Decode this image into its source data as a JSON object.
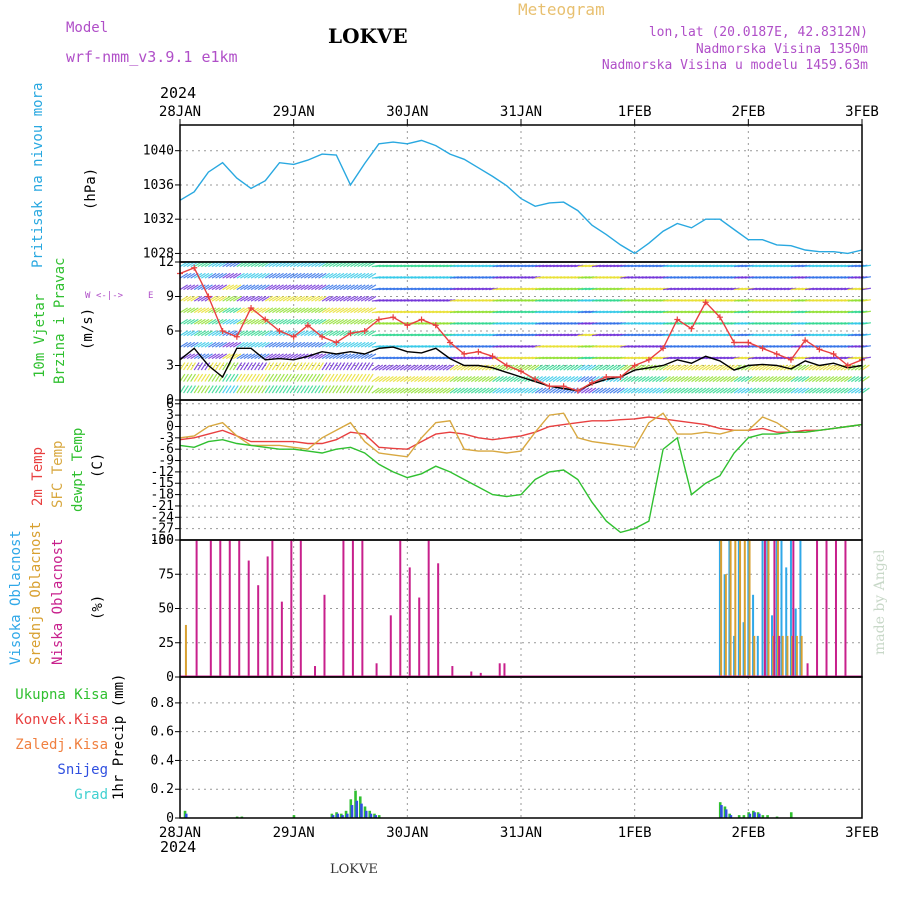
{
  "header": {
    "model_label": "Model",
    "model_name": "wrf-nmm_v3.9.1  e1km",
    "title": "LOKVE",
    "meteogram": "Meteogram",
    "lonlat": "lon,lat (20.0187E, 42.8312N)",
    "altitude": "Nadmorska Visina 1350m",
    "model_altitude": "Nadmorska Visina u modelu 1459.63m"
  },
  "footer": {
    "title": "LOKVE",
    "watermark": "made by Angel"
  },
  "time_axis": {
    "year": "2024",
    "labels": [
      "28JAN",
      "29JAN",
      "30JAN",
      "31JAN",
      "1FEB",
      "2FEB",
      "3FEB"
    ]
  },
  "panels": {
    "pressure": {
      "ylabel": "Pritisak na nivou mora",
      "unit": "(hPa)"
    },
    "wind": {
      "ylabel_1": "10m Vjetar",
      "ylabel_2": "Brzina i Pravac",
      "unit": "(m/s)",
      "compass_w": "W",
      "compass_e": "E",
      "compass_arrow": "<-|->",
      "compass_n": "N",
      "compass_s": "S"
    },
    "temp": {
      "ylabel_1": "2m Temp",
      "ylabel_2": "SFC Temp",
      "ylabel_3": "dewpt Temp",
      "unit": "(C)"
    },
    "cloud": {
      "ylabel_1": "Visoka Oblacnost",
      "ylabel_2": "Srednja Oblacnost",
      "ylabel_3": "Niska Oblacnost",
      "unit": "(%)"
    },
    "precip": {
      "labels": [
        "Ukupna Kisa",
        "Konvek.Kisa",
        "Zaledj.Kisa",
        "Snijeg",
        "Grad"
      ],
      "ylabel": "1hr Precip (mm)"
    }
  },
  "colors": {
    "pressure": "#29a8e0",
    "wind_speed": "#000000",
    "wind_gust": "#e84040",
    "t2m": "#e84040",
    "tsfc": "#d8a840",
    "dewpt": "#30c030",
    "cloud_high": "#30a8e8",
    "cloud_mid": "#d8a030",
    "cloud_low": "#c8208c",
    "precip_total": "#30c030",
    "precip_conv": "#e84040",
    "precip_frz": "#f08040",
    "precip_snow": "#3050e0",
    "precip_hail": "#40d0d0",
    "label_purple": "#b04fc8"
  },
  "chart_data": [
    {
      "type": "line",
      "name": "pressure",
      "x_unit": "hours since 28JAN 00UTC",
      "ylim": [
        1027,
        1043
      ],
      "yticks": [
        1028,
        1032,
        1036,
        1040
      ],
      "series": [
        {
          "name": "",
          "x": [
            0,
            3,
            6,
            9,
            12,
            15,
            18,
            21,
            24,
            27,
            30,
            33,
            36,
            39,
            42,
            45,
            48,
            51,
            54,
            57,
            60,
            63,
            66,
            69,
            72,
            75,
            78,
            81,
            84,
            87,
            90,
            93,
            96,
            99,
            102,
            105,
            108,
            111,
            114,
            117,
            120,
            123,
            126,
            129,
            132,
            135,
            138,
            141,
            144
          ],
          "y": [
            1034.2,
            1035.2,
            1037.5,
            1038.6,
            1036.8,
            1035.6,
            1036.5,
            1038.6,
            1038.4,
            1038.9,
            1039.6,
            1039.5,
            1036.0,
            1038.5,
            1040.8,
            1041.0,
            1040.8,
            1041.2,
            1040.6,
            1039.6,
            1039.0,
            1038.0,
            1037.0,
            1035.9,
            1034.4,
            1033.5,
            1033.9,
            1034.0,
            1033.0,
            1031.3,
            1030.2,
            1029.0,
            1028.0,
            1029.2,
            1030.6,
            1031.5,
            1031.0,
            1032.0,
            1032.0,
            1030.8,
            1029.6,
            1029.6,
            1029.0,
            1028.9,
            1028.4,
            1028.2,
            1028.2,
            1028.0,
            1028.4
          ]
        }
      ]
    },
    {
      "type": "line",
      "name": "wind",
      "ylim": [
        0,
        12
      ],
      "yticks": [
        0,
        3,
        6,
        9,
        12
      ],
      "series": [
        {
          "name": "",
          "x": [
            0,
            3,
            6,
            9,
            12,
            15,
            18,
            21,
            24,
            27,
            30,
            33,
            36,
            39,
            42,
            45,
            48,
            51,
            54,
            57,
            60,
            63,
            66,
            69,
            72,
            75,
            78,
            81,
            84,
            87,
            90,
            93,
            96,
            99,
            102,
            105,
            108,
            111,
            114,
            117,
            120,
            123,
            126,
            129,
            132,
            135,
            138,
            141,
            144
          ],
          "y": [
            3.5,
            4.5,
            3.0,
            2.0,
            4.5,
            4.5,
            3.5,
            3.6,
            3.5,
            3.8,
            4.2,
            4.0,
            4.2,
            4.0,
            4.5,
            4.6,
            4.2,
            4.1,
            4.5,
            3.6,
            3.0,
            3.0,
            2.8,
            2.4,
            2.0,
            1.6,
            1.2,
            1.0,
            0.8,
            1.4,
            1.8,
            2.0,
            2.6,
            2.8,
            3.0,
            3.5,
            3.2,
            3.8,
            3.4,
            2.6,
            3.0,
            3.1,
            3.0,
            2.7,
            3.4,
            3.0,
            3.2,
            2.8,
            3.0
          ]
        },
        {
          "name": "",
          "x": [
            0,
            3,
            6,
            9,
            12,
            15,
            18,
            21,
            24,
            27,
            30,
            33,
            36,
            39,
            42,
            45,
            48,
            51,
            54,
            57,
            60,
            63,
            66,
            69,
            72,
            75,
            78,
            81,
            84,
            87,
            90,
            93,
            96,
            99,
            102,
            105,
            108,
            111,
            114,
            117,
            120,
            123,
            126,
            129,
            132,
            135,
            138,
            141,
            144
          ],
          "y": [
            11.0,
            11.5,
            9.0,
            6.0,
            5.5,
            8.0,
            7.0,
            6.0,
            5.5,
            6.5,
            5.5,
            5.0,
            5.8,
            6.0,
            7.0,
            7.2,
            6.5,
            7.0,
            6.5,
            5.0,
            4.0,
            4.2,
            3.8,
            3.0,
            2.5,
            1.8,
            1.2,
            1.2,
            0.8,
            1.5,
            2.0,
            2.0,
            3.0,
            3.5,
            4.5,
            7.0,
            6.2,
            8.5,
            7.2,
            5.0,
            5.0,
            4.5,
            4.0,
            3.5,
            5.2,
            4.4,
            4.0,
            3.0,
            3.5
          ]
        }
      ]
    },
    {
      "type": "line",
      "name": "temperature",
      "ylim": [
        -30,
        7
      ],
      "yticks": [
        -30,
        -27,
        -24,
        -21,
        -18,
        -15,
        -12,
        -9,
        -6,
        -3,
        0,
        3,
        6
      ],
      "series": [
        {
          "name": "",
          "x": [
            0,
            3,
            6,
            9,
            12,
            15,
            18,
            21,
            24,
            27,
            30,
            33,
            36,
            39,
            42,
            45,
            48,
            51,
            54,
            57,
            60,
            63,
            66,
            69,
            72,
            75,
            78,
            81,
            84,
            87,
            90,
            93,
            96,
            99,
            102,
            105,
            108,
            111,
            114,
            117,
            120,
            123,
            126,
            129,
            132,
            135,
            138,
            141,
            144
          ],
          "y": [
            -3.5,
            -3.0,
            -2.0,
            -1.0,
            -2.5,
            -4.0,
            -4.0,
            -4.0,
            -4.0,
            -4.5,
            -4.5,
            -3.5,
            -1.5,
            -2.0,
            -5.5,
            -5.8,
            -6.0,
            -4.0,
            -2.0,
            -1.5,
            -2.0,
            -3.0,
            -3.5,
            -3.0,
            -2.5,
            -1.5,
            0.0,
            0.5,
            1.0,
            1.5,
            1.5,
            1.8,
            2.0,
            2.5,
            2.0,
            1.5,
            1.0,
            0.5,
            -0.5,
            -1.0,
            -1.0,
            -0.5,
            -1.5,
            -1.5,
            -1.0,
            -1.0,
            -0.5,
            0.0,
            0.5
          ]
        },
        {
          "name": "",
          "x": [
            0,
            3,
            6,
            9,
            12,
            15,
            18,
            21,
            24,
            27,
            30,
            33,
            36,
            39,
            42,
            45,
            48,
            51,
            54,
            57,
            60,
            63,
            66,
            69,
            72,
            75,
            78,
            81,
            84,
            87,
            90,
            93,
            96,
            99,
            102,
            105,
            108,
            111,
            114,
            117,
            120,
            123,
            126,
            129,
            132,
            135,
            138,
            141,
            144
          ],
          "y": [
            -3.0,
            -2.5,
            0.0,
            1.0,
            -2.5,
            -5.0,
            -5.0,
            -5.0,
            -5.5,
            -6.0,
            -3.0,
            -1.0,
            1.0,
            -4.0,
            -7.0,
            -7.5,
            -8.0,
            -3.0,
            1.0,
            1.5,
            -6.0,
            -6.5,
            -6.5,
            -7.0,
            -6.5,
            -1.5,
            3.0,
            3.5,
            -3.0,
            -4.0,
            -4.5,
            -5.0,
            -5.5,
            1.0,
            3.5,
            -2.0,
            -2.0,
            -1.5,
            -2.0,
            -1.0,
            -1.0,
            2.5,
            1.0,
            -1.5,
            -1.5,
            -1.0,
            -0.5,
            0.0,
            0.5
          ]
        },
        {
          "name": "",
          "x": [
            0,
            3,
            6,
            9,
            12,
            15,
            18,
            21,
            24,
            27,
            30,
            33,
            36,
            39,
            42,
            45,
            48,
            51,
            54,
            57,
            60,
            63,
            66,
            69,
            72,
            75,
            78,
            81,
            84,
            87,
            90,
            93,
            96,
            99,
            102,
            105,
            108,
            111,
            114,
            117,
            120,
            123,
            126,
            129,
            132,
            135,
            138,
            141,
            144
          ],
          "y": [
            -5.0,
            -5.5,
            -4.0,
            -3.5,
            -4.5,
            -5.0,
            -5.5,
            -6.0,
            -6.0,
            -6.5,
            -7.0,
            -6.0,
            -5.5,
            -7.0,
            -10.0,
            -12.0,
            -13.5,
            -12.5,
            -10.5,
            -12.0,
            -14.0,
            -16.0,
            -18.0,
            -18.5,
            -18.0,
            -14.0,
            -12.0,
            -11.5,
            -14.0,
            -20.0,
            -25.0,
            -28.0,
            -27.0,
            -25.0,
            -6.0,
            -3.0,
            -18.0,
            -15.0,
            -13.0,
            -7.0,
            -3.0,
            -2.0,
            -2.0,
            -1.5,
            -1.5,
            -1.0,
            -0.5,
            0.0,
            0.5
          ]
        }
      ]
    },
    {
      "type": "bar",
      "name": "cloud",
      "ylim": [
        0,
        100
      ],
      "yticks": [
        0,
        25,
        50,
        75,
        100
      ],
      "series": [
        {
          "name": "",
          "x": [
            114,
            115,
            116,
            117,
            118,
            119,
            120,
            121,
            122,
            123,
            124,
            125,
            126,
            127,
            128,
            129,
            130,
            131
          ],
          "values": [
            100,
            75,
            100,
            30,
            100,
            40,
            100,
            60,
            30,
            100,
            100,
            45,
            100,
            100,
            80,
            100,
            50,
            100
          ]
        },
        {
          "name": "",
          "x": [
            1,
            114,
            115,
            116,
            117,
            118,
            119,
            120,
            121,
            124,
            125,
            126,
            127,
            128,
            129,
            130,
            131
          ],
          "values": [
            38,
            100,
            75,
            100,
            100,
            100,
            100,
            100,
            30,
            100,
            30,
            100,
            30,
            30,
            30,
            30,
            30
          ]
        },
        {
          "name": "",
          "x": [
            3,
            6,
            8,
            10,
            12,
            14,
            16,
            18,
            19,
            21,
            23,
            25,
            28,
            30,
            34,
            36,
            38,
            41,
            44,
            46,
            48,
            50,
            52,
            54,
            57,
            61,
            63,
            67,
            68,
            123,
            125,
            126,
            129,
            132,
            134,
            136,
            138,
            140
          ],
          "values": [
            100,
            100,
            100,
            100,
            100,
            85,
            67,
            88,
            100,
            55,
            100,
            100,
            8,
            60,
            100,
            100,
            100,
            10,
            45,
            100,
            80,
            58,
            100,
            83,
            8,
            4,
            3,
            10,
            10,
            100,
            100,
            30,
            100,
            10,
            100,
            100,
            100,
            100
          ]
        }
      ]
    },
    {
      "type": "bar",
      "name": "precipitation",
      "ylim": [
        0,
        0.98
      ],
      "yticks": [
        0,
        0.2,
        0.4,
        0.6,
        0.8
      ],
      "series": [
        {
          "name": "",
          "x": [
            1,
            12,
            13,
            24,
            32,
            33,
            34,
            35,
            36,
            37,
            38,
            39,
            40,
            41,
            42,
            114,
            115,
            116,
            118,
            119,
            120,
            121,
            122,
            123,
            124,
            126,
            129
          ],
          "values": [
            0.05,
            0.01,
            0.01,
            0.02,
            0.03,
            0.04,
            0.03,
            0.05,
            0.13,
            0.19,
            0.15,
            0.08,
            0.05,
            0.03,
            0.02,
            0.11,
            0.08,
            0.03,
            0.02,
            0.02,
            0.04,
            0.05,
            0.04,
            0.02,
            0.02,
            0.01,
            0.04
          ]
        },
        {
          "name": "",
          "x": [
            1,
            32,
            33,
            34,
            35,
            36,
            37,
            38,
            39,
            40,
            41,
            114,
            115,
            116,
            120,
            121,
            122
          ],
          "values": [
            0.03,
            0.02,
            0.03,
            0.02,
            0.03,
            0.09,
            0.12,
            0.1,
            0.05,
            0.03,
            0.02,
            0.09,
            0.06,
            0.02,
            0.03,
            0.04,
            0.03
          ]
        }
      ]
    }
  ]
}
